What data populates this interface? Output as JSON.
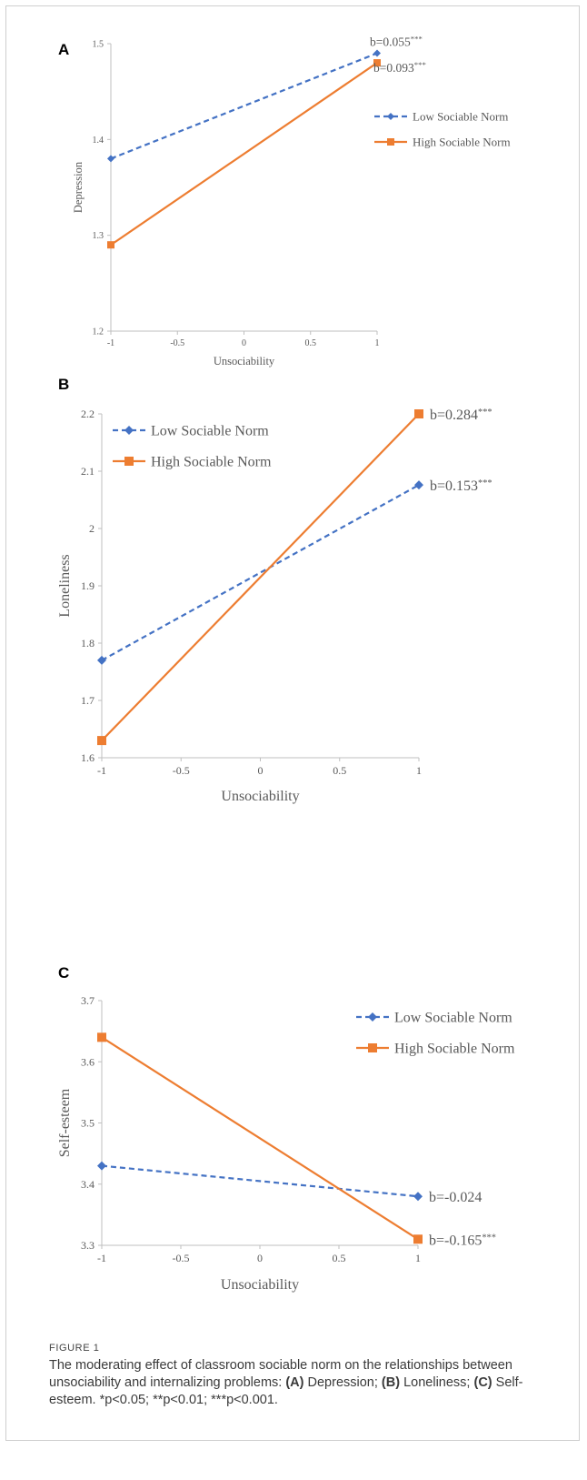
{
  "figure": {
    "label": "FIGURE 1",
    "caption_intro": "The moderating effect of classroom sociable norm on the relationships between unsociability and internalizing problems:",
    "caption_items": [
      {
        "tag": "(A)",
        "text": " Depression; "
      },
      {
        "tag": "(B)",
        "text": " Loneliness; "
      },
      {
        "tag": "(C)",
        "text": " Self-esteem. "
      }
    ],
    "caption_sig": "*p<0.05; **p<0.01; ***p<0.001."
  },
  "colors": {
    "low": "#4472c4",
    "high": "#ed7d31",
    "axis": "#bfbfbf",
    "text": "#595959"
  },
  "chart_data": [
    {
      "panel": "A",
      "type": "line",
      "xlabel": "Unsociability",
      "ylabel": "Depression",
      "x": [
        -1,
        1
      ],
      "xticks": [
        "-1",
        "-0.5",
        "0",
        "0.5",
        "1"
      ],
      "yticks": [
        "1.2",
        "1.3",
        "1.4",
        "1.5"
      ],
      "xlim": [
        -1,
        1
      ],
      "ylim": [
        1.2,
        1.5
      ],
      "legend_position": "right",
      "series": [
        {
          "name": "Low Sociable Norm",
          "values": [
            1.38,
            1.49
          ],
          "style": "dashed",
          "marker": "diamond",
          "annotation": "b=0.055",
          "annotation_sup": "***"
        },
        {
          "name": "High Sociable Norm",
          "values": [
            1.29,
            1.48
          ],
          "style": "solid",
          "marker": "square",
          "annotation": "b=0.093",
          "annotation_sup": "***"
        }
      ]
    },
    {
      "panel": "B",
      "type": "line",
      "xlabel": "Unsociability",
      "ylabel": "Loneliness",
      "x": [
        -1,
        1
      ],
      "xticks": [
        "-1",
        "-0.5",
        "0",
        "0.5",
        "1"
      ],
      "yticks": [
        "1.6",
        "1.7",
        "1.8",
        "1.9",
        "2",
        "2.1",
        "2.2"
      ],
      "xlim": [
        -1,
        1
      ],
      "ylim": [
        1.6,
        2.2
      ],
      "legend_position": "top-left",
      "series": [
        {
          "name": "Low Sociable Norm",
          "values": [
            1.77,
            2.076
          ],
          "style": "dashed",
          "marker": "diamond",
          "annotation": "b=0.153",
          "annotation_sup": "***"
        },
        {
          "name": "High Sociable Norm",
          "values": [
            1.63,
            2.2
          ],
          "style": "solid",
          "marker": "square",
          "annotation": "b=0.284",
          "annotation_sup": "***"
        }
      ]
    },
    {
      "panel": "C",
      "type": "line",
      "xlabel": "Unsociability",
      "ylabel": "Self-esteem",
      "x": [
        -1,
        1
      ],
      "xticks": [
        "-1",
        "-0.5",
        "0",
        "0.5",
        "1"
      ],
      "yticks": [
        "3.3",
        "3.4",
        "3.5",
        "3.6",
        "3.7"
      ],
      "xlim": [
        -1,
        1
      ],
      "ylim": [
        3.3,
        3.7
      ],
      "legend_position": "top-right",
      "series": [
        {
          "name": "Low Sociable Norm",
          "values": [
            3.43,
            3.38
          ],
          "style": "dashed",
          "marker": "diamond",
          "annotation": "b=-0.024",
          "annotation_sup": ""
        },
        {
          "name": "High Sociable Norm",
          "values": [
            3.64,
            3.31
          ],
          "style": "solid",
          "marker": "square",
          "annotation": "b=-0.165",
          "annotation_sup": "***"
        }
      ]
    }
  ]
}
